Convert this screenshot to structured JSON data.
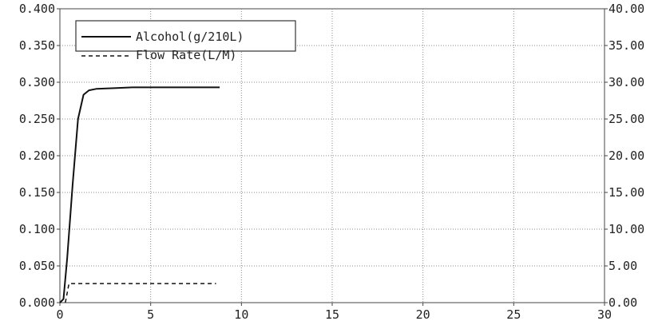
{
  "chart_data": {
    "type": "line",
    "title": "",
    "xlabel": "",
    "ylabel": "",
    "y2label": "",
    "xlim": [
      0,
      30
    ],
    "ylim": [
      0,
      0.4
    ],
    "y2lim": [
      0,
      40
    ],
    "x_ticks": [
      "0",
      "5",
      "10",
      "15",
      "20",
      "25",
      "30"
    ],
    "x_tick_values": [
      0,
      5,
      10,
      15,
      20,
      25,
      30
    ],
    "y_ticks": [
      "0.000",
      "0.050",
      "0.100",
      "0.150",
      "0.200",
      "0.250",
      "0.300",
      "0.350",
      "0.400"
    ],
    "y_tick_values": [
      0,
      0.05,
      0.1,
      0.15,
      0.2,
      0.25,
      0.3,
      0.35,
      0.4
    ],
    "y2_ticks": [
      "0.00",
      "5.00",
      "10.00",
      "15.00",
      "20.00",
      "25.00",
      "30.00",
      "35.00",
      "40.00"
    ],
    "y2_tick_values": [
      0,
      5,
      10,
      15,
      20,
      25,
      30,
      35,
      40
    ],
    "grid": true,
    "legend_position": "top-left",
    "series": [
      {
        "name": "Alcohol(g/210L)",
        "axis": "left",
        "style": "solid",
        "color": "#111111",
        "x": [
          0,
          0.2,
          0.4,
          0.7,
          1.0,
          1.3,
          1.6,
          2.0,
          3.0,
          4.0,
          6.0,
          8.0,
          8.8
        ],
        "y": [
          0.0,
          0.005,
          0.06,
          0.16,
          0.25,
          0.283,
          0.289,
          0.291,
          0.292,
          0.293,
          0.293,
          0.293,
          0.293
        ]
      },
      {
        "name": "Flow Rate(L/M)",
        "axis": "right",
        "style": "dashed",
        "color": "#111111",
        "x": [
          0.3,
          0.5,
          8.6
        ],
        "y": [
          0.0,
          2.6,
          2.6
        ]
      }
    ]
  }
}
